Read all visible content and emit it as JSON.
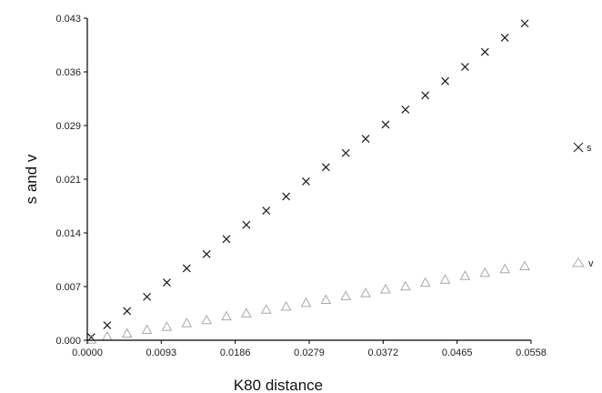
{
  "chart_data": {
    "type": "scatter",
    "title": "",
    "xlabel": "K80 distance",
    "ylabel": "s and v",
    "xlim": [
      0,
      0.0558
    ],
    "ylim": [
      0,
      0.043
    ],
    "x_ticks": [
      "0.0000",
      "0.0093",
      "0.0186",
      "0.0279",
      "0.0372",
      "0.0465",
      "0.0558"
    ],
    "y_ticks": [
      "0.000",
      "0.007",
      "0.014",
      "0.021",
      "0.029",
      "0.036",
      "0.043"
    ],
    "grid": false,
    "legend_position": "right",
    "series": [
      {
        "name": "s",
        "marker": "x",
        "color": "#1a1a1a",
        "x": [
          0.0005,
          0.0025,
          0.005,
          0.0075,
          0.01,
          0.0125,
          0.015,
          0.0175,
          0.02,
          0.0225,
          0.025,
          0.0275,
          0.03,
          0.0325,
          0.035,
          0.0375,
          0.04,
          0.0425,
          0.045,
          0.0475,
          0.05,
          0.0525,
          0.055
        ],
        "y": [
          0.0004,
          0.002,
          0.0039,
          0.0058,
          0.0077,
          0.0096,
          0.0115,
          0.0135,
          0.0154,
          0.0173,
          0.0192,
          0.0212,
          0.0231,
          0.025,
          0.0269,
          0.0288,
          0.0308,
          0.0327,
          0.0346,
          0.0365,
          0.0385,
          0.0404,
          0.0423
        ]
      },
      {
        "name": "v",
        "marker": "triangle",
        "color": "#a8a8a8",
        "x": [
          0.0005,
          0.0025,
          0.005,
          0.0075,
          0.01,
          0.0125,
          0.015,
          0.0175,
          0.02,
          0.0225,
          0.025,
          0.0275,
          0.03,
          0.0325,
          0.035,
          0.0375,
          0.04,
          0.0425,
          0.045,
          0.0475,
          0.05,
          0.0525,
          0.055
        ],
        "y": [
          0.0001,
          0.0005,
          0.0009,
          0.0014,
          0.0018,
          0.0023,
          0.0027,
          0.0032,
          0.0036,
          0.0041,
          0.0045,
          0.005,
          0.0054,
          0.0059,
          0.0063,
          0.0068,
          0.0072,
          0.0077,
          0.0081,
          0.0086,
          0.009,
          0.0095,
          0.0099
        ]
      }
    ]
  }
}
